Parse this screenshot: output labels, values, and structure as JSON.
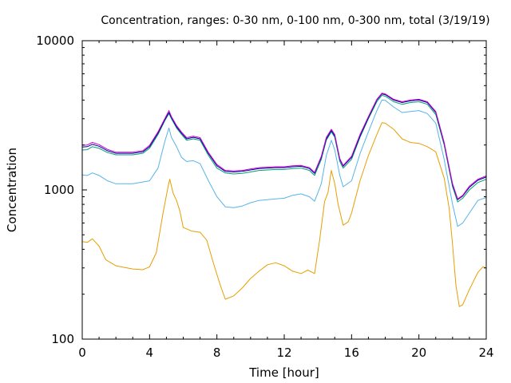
{
  "chart_data": {
    "type": "line",
    "title": "Concentration, ranges: 0-30 nm, 0-100 nm, 0-300 nm, total (3/19/19)",
    "xlabel": "Time [hour]",
    "ylabel": "Concentration",
    "xlim": [
      0,
      24
    ],
    "ylim": [
      100,
      10000
    ],
    "y_scale": "log",
    "x_ticks": [
      0,
      4,
      8,
      12,
      16,
      20,
      24
    ],
    "x_tick_labels": [
      "0",
      "4",
      "8",
      "12",
      "16",
      "20",
      "24"
    ],
    "y_ticks": [
      100,
      1000,
      10000
    ],
    "y_tick_labels": [
      "100",
      "1000",
      "10000"
    ],
    "grid": false,
    "legend": "none",
    "series": [
      {
        "color": "#e69f00",
        "points": [
          [
            0,
            450
          ],
          [
            0.3,
            445
          ],
          [
            0.6,
            470
          ],
          [
            1,
            420
          ],
          [
            1.4,
            340
          ],
          [
            2,
            310
          ],
          [
            3,
            295
          ],
          [
            3.6,
            292
          ],
          [
            4,
            305
          ],
          [
            4.4,
            380
          ],
          [
            4.8,
            700
          ],
          [
            5.1,
            1050
          ],
          [
            5.2,
            1180
          ],
          [
            5.4,
            950
          ],
          [
            5.6,
            850
          ],
          [
            5.8,
            720
          ],
          [
            6,
            560
          ],
          [
            6.5,
            530
          ],
          [
            7,
            520
          ],
          [
            7.4,
            460
          ],
          [
            7.8,
            320
          ],
          [
            8.2,
            230
          ],
          [
            8.5,
            185
          ],
          [
            9,
            195
          ],
          [
            9.5,
            220
          ],
          [
            10,
            255
          ],
          [
            10.5,
            285
          ],
          [
            11,
            315
          ],
          [
            11.5,
            325
          ],
          [
            12,
            310
          ],
          [
            12.5,
            285
          ],
          [
            13,
            275
          ],
          [
            13.4,
            290
          ],
          [
            13.8,
            275
          ],
          [
            14.1,
            460
          ],
          [
            14.4,
            840
          ],
          [
            14.6,
            960
          ],
          [
            14.8,
            1350
          ],
          [
            15,
            1100
          ],
          [
            15.2,
            800
          ],
          [
            15.5,
            580
          ],
          [
            15.8,
            610
          ],
          [
            16,
            700
          ],
          [
            16.5,
            1150
          ],
          [
            17,
            1700
          ],
          [
            17.5,
            2350
          ],
          [
            17.8,
            2820
          ],
          [
            18,
            2800
          ],
          [
            18.5,
            2550
          ],
          [
            19,
            2200
          ],
          [
            19.5,
            2080
          ],
          [
            20,
            2050
          ],
          [
            20.5,
            1950
          ],
          [
            21,
            1800
          ],
          [
            21.5,
            1200
          ],
          [
            21.8,
            750
          ],
          [
            22,
            430
          ],
          [
            22.2,
            230
          ],
          [
            22.4,
            165
          ],
          [
            22.6,
            170
          ],
          [
            23,
            215
          ],
          [
            23.5,
            280
          ],
          [
            23.8,
            305
          ],
          [
            24,
            300
          ]
        ]
      },
      {
        "color": "#56b4e9",
        "points": [
          [
            0,
            1260
          ],
          [
            0.3,
            1250
          ],
          [
            0.6,
            1300
          ],
          [
            1,
            1250
          ],
          [
            1.5,
            1150
          ],
          [
            2,
            1100
          ],
          [
            3,
            1100
          ],
          [
            4,
            1150
          ],
          [
            4.5,
            1400
          ],
          [
            4.9,
            2100
          ],
          [
            5.15,
            2600
          ],
          [
            5.3,
            2250
          ],
          [
            5.6,
            1950
          ],
          [
            5.9,
            1650
          ],
          [
            6.2,
            1550
          ],
          [
            6.6,
            1570
          ],
          [
            7,
            1500
          ],
          [
            7.5,
            1150
          ],
          [
            8,
            900
          ],
          [
            8.5,
            770
          ],
          [
            9,
            760
          ],
          [
            9.5,
            780
          ],
          [
            10,
            820
          ],
          [
            10.5,
            850
          ],
          [
            11,
            860
          ],
          [
            11.5,
            870
          ],
          [
            12,
            880
          ],
          [
            12.5,
            920
          ],
          [
            13,
            940
          ],
          [
            13.5,
            900
          ],
          [
            13.8,
            840
          ],
          [
            14.2,
            1100
          ],
          [
            14.5,
            1700
          ],
          [
            14.8,
            2150
          ],
          [
            15,
            1850
          ],
          [
            15.3,
            1250
          ],
          [
            15.5,
            1050
          ],
          [
            16,
            1150
          ],
          [
            16.5,
            1750
          ],
          [
            17,
            2450
          ],
          [
            17.5,
            3400
          ],
          [
            17.8,
            4000
          ],
          [
            18,
            3980
          ],
          [
            18.5,
            3600
          ],
          [
            19,
            3300
          ],
          [
            19.5,
            3350
          ],
          [
            20,
            3400
          ],
          [
            20.5,
            3250
          ],
          [
            21,
            2800
          ],
          [
            21.5,
            1600
          ],
          [
            22,
            800
          ],
          [
            22.3,
            570
          ],
          [
            22.6,
            600
          ],
          [
            23,
            700
          ],
          [
            23.5,
            850
          ],
          [
            24,
            890
          ]
        ]
      },
      {
        "color": "#009e73",
        "points": [
          [
            0,
            1850
          ],
          [
            0.3,
            1860
          ],
          [
            0.6,
            1950
          ],
          [
            1,
            1900
          ],
          [
            1.5,
            1780
          ],
          [
            2,
            1720
          ],
          [
            3,
            1720
          ],
          [
            3.6,
            1760
          ],
          [
            4,
            1900
          ],
          [
            4.5,
            2350
          ],
          [
            4.9,
            2900
          ],
          [
            5.15,
            3250
          ],
          [
            5.3,
            3000
          ],
          [
            5.6,
            2600
          ],
          [
            5.9,
            2350
          ],
          [
            6.2,
            2150
          ],
          [
            6.6,
            2200
          ],
          [
            7,
            2150
          ],
          [
            7.5,
            1700
          ],
          [
            8,
            1400
          ],
          [
            8.5,
            1300
          ],
          [
            9,
            1280
          ],
          [
            9.5,
            1290
          ],
          [
            10,
            1320
          ],
          [
            10.5,
            1350
          ],
          [
            11,
            1360
          ],
          [
            11.5,
            1370
          ],
          [
            12,
            1370
          ],
          [
            12.5,
            1390
          ],
          [
            13,
            1400
          ],
          [
            13.5,
            1350
          ],
          [
            13.8,
            1250
          ],
          [
            14.2,
            1600
          ],
          [
            14.5,
            2150
          ],
          [
            14.8,
            2450
          ],
          [
            15,
            2250
          ],
          [
            15.3,
            1550
          ],
          [
            15.5,
            1400
          ],
          [
            16,
            1600
          ],
          [
            16.5,
            2250
          ],
          [
            17,
            3000
          ],
          [
            17.5,
            3900
          ],
          [
            17.8,
            4300
          ],
          [
            18,
            4250
          ],
          [
            18.5,
            3900
          ],
          [
            19,
            3750
          ],
          [
            19.5,
            3850
          ],
          [
            20,
            3900
          ],
          [
            20.5,
            3750
          ],
          [
            21,
            3200
          ],
          [
            21.5,
            2000
          ],
          [
            22,
            1050
          ],
          [
            22.3,
            830
          ],
          [
            22.6,
            880
          ],
          [
            23,
            1000
          ],
          [
            23.5,
            1120
          ],
          [
            24,
            1180
          ]
        ]
      },
      {
        "color": "#0000a0",
        "points": [
          [
            0,
            1940
          ],
          [
            0.3,
            1950
          ],
          [
            0.6,
            2020
          ],
          [
            1,
            1960
          ],
          [
            1.5,
            1830
          ],
          [
            2,
            1760
          ],
          [
            3,
            1760
          ],
          [
            3.6,
            1800
          ],
          [
            4,
            1950
          ],
          [
            4.5,
            2400
          ],
          [
            4.9,
            2950
          ],
          [
            5.15,
            3300
          ],
          [
            5.3,
            3050
          ],
          [
            5.6,
            2650
          ],
          [
            5.9,
            2400
          ],
          [
            6.2,
            2200
          ],
          [
            6.6,
            2250
          ],
          [
            7,
            2200
          ],
          [
            7.5,
            1750
          ],
          [
            8,
            1450
          ],
          [
            8.5,
            1330
          ],
          [
            9,
            1320
          ],
          [
            9.5,
            1330
          ],
          [
            10,
            1360
          ],
          [
            10.5,
            1390
          ],
          [
            11,
            1400
          ],
          [
            11.5,
            1410
          ],
          [
            12,
            1410
          ],
          [
            12.5,
            1430
          ],
          [
            13,
            1440
          ],
          [
            13.5,
            1390
          ],
          [
            13.8,
            1290
          ],
          [
            14.2,
            1650
          ],
          [
            14.5,
            2200
          ],
          [
            14.8,
            2500
          ],
          [
            15,
            2300
          ],
          [
            15.3,
            1600
          ],
          [
            15.5,
            1440
          ],
          [
            16,
            1650
          ],
          [
            16.5,
            2300
          ],
          [
            17,
            3050
          ],
          [
            17.5,
            4000
          ],
          [
            17.8,
            4400
          ],
          [
            18,
            4350
          ],
          [
            18.5,
            4000
          ],
          [
            19,
            3850
          ],
          [
            19.5,
            3950
          ],
          [
            20,
            4000
          ],
          [
            20.5,
            3850
          ],
          [
            21,
            3300
          ],
          [
            21.5,
            2050
          ],
          [
            22,
            1080
          ],
          [
            22.3,
            860
          ],
          [
            22.6,
            910
          ],
          [
            23,
            1040
          ],
          [
            23.5,
            1160
          ],
          [
            24,
            1220
          ]
        ]
      },
      {
        "color": "#cc00cc",
        "points": [
          [
            0,
            1990
          ],
          [
            0.3,
            2000
          ],
          [
            0.6,
            2080
          ],
          [
            1,
            2010
          ],
          [
            1.5,
            1870
          ],
          [
            2,
            1790
          ],
          [
            3,
            1790
          ],
          [
            3.6,
            1830
          ],
          [
            4,
            1990
          ],
          [
            4.5,
            2450
          ],
          [
            4.9,
            3000
          ],
          [
            5.15,
            3400
          ],
          [
            5.3,
            3100
          ],
          [
            5.6,
            2700
          ],
          [
            5.9,
            2440
          ],
          [
            6.2,
            2240
          ],
          [
            6.6,
            2290
          ],
          [
            7,
            2240
          ],
          [
            7.5,
            1780
          ],
          [
            8,
            1480
          ],
          [
            8.5,
            1350
          ],
          [
            9,
            1340
          ],
          [
            9.5,
            1350
          ],
          [
            10,
            1380
          ],
          [
            10.5,
            1410
          ],
          [
            11,
            1420
          ],
          [
            11.5,
            1430
          ],
          [
            12,
            1430
          ],
          [
            12.5,
            1450
          ],
          [
            13,
            1460
          ],
          [
            13.5,
            1410
          ],
          [
            13.8,
            1310
          ],
          [
            14.2,
            1680
          ],
          [
            14.5,
            2250
          ],
          [
            14.8,
            2550
          ],
          [
            15,
            2350
          ],
          [
            15.3,
            1620
          ],
          [
            15.5,
            1460
          ],
          [
            16,
            1680
          ],
          [
            16.5,
            2350
          ],
          [
            17,
            3100
          ],
          [
            17.5,
            4050
          ],
          [
            17.8,
            4450
          ],
          [
            18,
            4400
          ],
          [
            18.5,
            4050
          ],
          [
            19,
            3900
          ],
          [
            19.5,
            4000
          ],
          [
            20,
            4050
          ],
          [
            20.5,
            3900
          ],
          [
            21,
            3350
          ],
          [
            21.5,
            2080
          ],
          [
            22,
            1100
          ],
          [
            22.3,
            870
          ],
          [
            22.6,
            920
          ],
          [
            23,
            1060
          ],
          [
            23.5,
            1180
          ],
          [
            24,
            1240
          ]
        ]
      }
    ]
  }
}
